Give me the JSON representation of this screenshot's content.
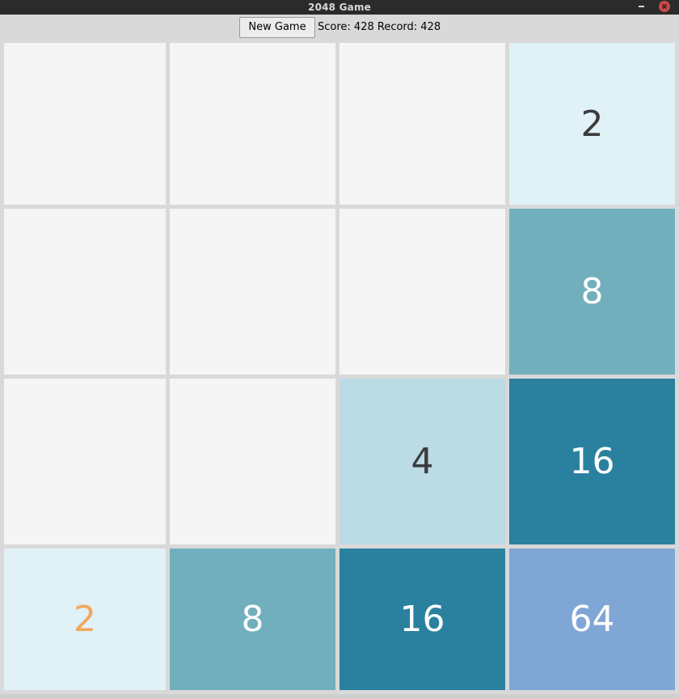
{
  "window": {
    "title": "2048 Game"
  },
  "toolbar": {
    "new_game_label": "New Game",
    "score_label": "Score:",
    "score_value": 428,
    "record_label": "Record:",
    "record_value": 428,
    "score_text": "Score: 428 Record: 428"
  },
  "board": {
    "rows": 4,
    "cols": 4,
    "cells": [
      [
        {
          "value": "",
          "bg": "#f5f5f5",
          "fg": "#3c3c3c"
        },
        {
          "value": "",
          "bg": "#f5f5f5",
          "fg": "#3c3c3c"
        },
        {
          "value": "",
          "bg": "#f5f5f5",
          "fg": "#3c3c3c"
        },
        {
          "value": "2",
          "bg": "#e1f1f8",
          "fg": "#3c3c3c"
        }
      ],
      [
        {
          "value": "",
          "bg": "#f5f5f5",
          "fg": "#3c3c3c"
        },
        {
          "value": "",
          "bg": "#f5f5f5",
          "fg": "#3c3c3c"
        },
        {
          "value": "",
          "bg": "#f5f5f5",
          "fg": "#3c3c3c"
        },
        {
          "value": "8",
          "bg": "#72afbd",
          "fg": "#ffffff"
        }
      ],
      [
        {
          "value": "",
          "bg": "#f5f5f5",
          "fg": "#3c3c3c"
        },
        {
          "value": "",
          "bg": "#f5f5f5",
          "fg": "#3c3c3c"
        },
        {
          "value": "4",
          "bg": "#bbdbe5",
          "fg": "#3c3c3c"
        },
        {
          "value": "16",
          "bg": "#29819f",
          "fg": "#ffffff"
        }
      ],
      [
        {
          "value": "2",
          "bg": "#e1f1f8",
          "fg": "#f2a85a"
        },
        {
          "value": "8",
          "bg": "#72afbd",
          "fg": "#ffffff"
        },
        {
          "value": "16",
          "bg": "#29819f",
          "fg": "#ffffff"
        },
        {
          "value": "64",
          "bg": "#80a6d6",
          "fg": "#ffffff"
        }
      ]
    ]
  }
}
